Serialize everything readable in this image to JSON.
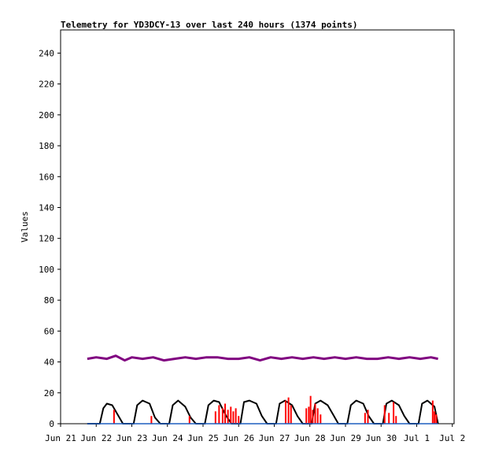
{
  "chart_data": {
    "type": "line",
    "title": "Telemetry for YD3DCY-13 over last 240 hours (1374 points)",
    "xlabel": "",
    "ylabel": "Values",
    "x_ticks": [
      "Jun 21",
      "Jun 22",
      "Jun 23",
      "Jun 24",
      "Jun 25",
      "Jun 26",
      "Jun 27",
      "Jun 28",
      "Jun 29",
      "Jun 30",
      "Jul 1",
      "Jul 2"
    ],
    "y_ticks": [
      0,
      20,
      40,
      60,
      80,
      100,
      120,
      140,
      160,
      180,
      200,
      220,
      240
    ],
    "ylim": [
      0,
      255
    ],
    "x_range_days": [
      0,
      11.05
    ],
    "grid": false,
    "colors": {
      "series_purple": "#800080",
      "series_black": "#000000",
      "series_red": "#ff0000",
      "series_blue": "#1f5fbf"
    },
    "series": [
      {
        "color": "purple",
        "x": [
          0.75,
          1.0,
          1.3,
          1.55,
          1.8,
          2.0,
          2.3,
          2.6,
          2.9,
          3.2,
          3.5,
          3.8,
          4.1,
          4.4,
          4.7,
          5.0,
          5.3,
          5.6,
          5.9,
          6.2,
          6.5,
          6.8,
          7.1,
          7.4,
          7.7,
          8.0,
          8.3,
          8.6,
          8.9,
          9.2,
          9.5,
          9.8,
          10.1,
          10.4,
          10.6
        ],
        "y": [
          42,
          43,
          42,
          44,
          41,
          43,
          42,
          43,
          41,
          42,
          43,
          42,
          43,
          43,
          42,
          42,
          43,
          41,
          43,
          42,
          43,
          42,
          43,
          42,
          43,
          42,
          43,
          42,
          42,
          43,
          42,
          43,
          42,
          43,
          42
        ]
      },
      {
        "color": "black",
        "x": [
          0.75,
          1.1,
          1.2,
          1.3,
          1.45,
          1.6,
          1.75,
          2.05,
          2.15,
          2.3,
          2.5,
          2.65,
          2.8,
          3.05,
          3.15,
          3.3,
          3.5,
          3.65,
          3.8,
          4.05,
          4.15,
          4.3,
          4.45,
          4.65,
          4.8,
          5.05,
          5.15,
          5.3,
          5.5,
          5.65,
          5.8,
          6.05,
          6.15,
          6.3,
          6.5,
          6.65,
          6.8,
          7.05,
          7.15,
          7.3,
          7.5,
          7.65,
          7.8,
          8.05,
          8.15,
          8.3,
          8.5,
          8.65,
          8.8,
          9.05,
          9.15,
          9.3,
          9.5,
          9.65,
          9.8,
          10.05,
          10.15,
          10.3,
          10.5,
          10.6
        ],
        "y": [
          0,
          0,
          10,
          13,
          12,
          6,
          0,
          0,
          12,
          15,
          13,
          4,
          0,
          0,
          12,
          15,
          11,
          4,
          0,
          0,
          12,
          15,
          14,
          5,
          0,
          0,
          14,
          15,
          13,
          5,
          0,
          0,
          13,
          15,
          12,
          5,
          0,
          0,
          13,
          15,
          12,
          6,
          0,
          0,
          12,
          15,
          13,
          5,
          0,
          0,
          13,
          15,
          12,
          5,
          0,
          0,
          13,
          15,
          11,
          0
        ]
      },
      {
        "color": "red",
        "x": [
          1.5,
          2.55,
          3.62,
          4.35,
          4.45,
          4.55,
          4.62,
          4.7,
          4.78,
          4.85,
          4.92,
          5.0,
          6.32,
          6.4,
          6.47,
          6.9,
          6.97,
          7.02,
          7.08,
          7.15,
          7.22,
          7.3,
          8.55,
          8.63,
          9.1,
          9.22,
          9.35,
          9.42,
          10.45,
          10.5,
          10.55
        ],
        "y": [
          9,
          5,
          5,
          8,
          12,
          10,
          13,
          9,
          11,
          8,
          10,
          5,
          15,
          17,
          12,
          10,
          11,
          18,
          9,
          13,
          10,
          6,
          7,
          9,
          12,
          7,
          14,
          5,
          15,
          8,
          6
        ]
      },
      {
        "color": "blue",
        "x": [
          0.75,
          10.6
        ],
        "y": [
          0,
          0
        ]
      }
    ]
  }
}
